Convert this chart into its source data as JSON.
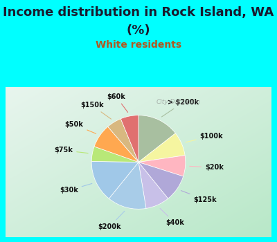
{
  "title_line1": "Income distribution in Rock Island, WA",
  "title_line2": "(%)",
  "subtitle": "White residents",
  "labels_ordered": [
    "> $200k",
    "$100k",
    "$20k",
    "$125k",
    "$40k",
    "$200k",
    "$30k",
    "$75k",
    "$50k",
    "$150k",
    "$60k"
  ],
  "values_ordered": [
    14,
    8,
    7,
    9,
    8,
    13,
    14,
    5,
    8,
    5,
    6
  ],
  "colors_ordered": [
    "#a8bfa0",
    "#f5f5a0",
    "#ffb6c1",
    "#b0a8d8",
    "#c8c0e8",
    "#a8cce8",
    "#a0c8e8",
    "#b8e878",
    "#ffa850",
    "#d8b880",
    "#e07070"
  ],
  "background_color": "#00ffff",
  "title_color": "#1a1a2e",
  "subtitle_color": "#b05820",
  "title_fontsize": 13,
  "subtitle_fontsize": 10,
  "label_fontsize": 7,
  "watermark": "City-Data.com"
}
